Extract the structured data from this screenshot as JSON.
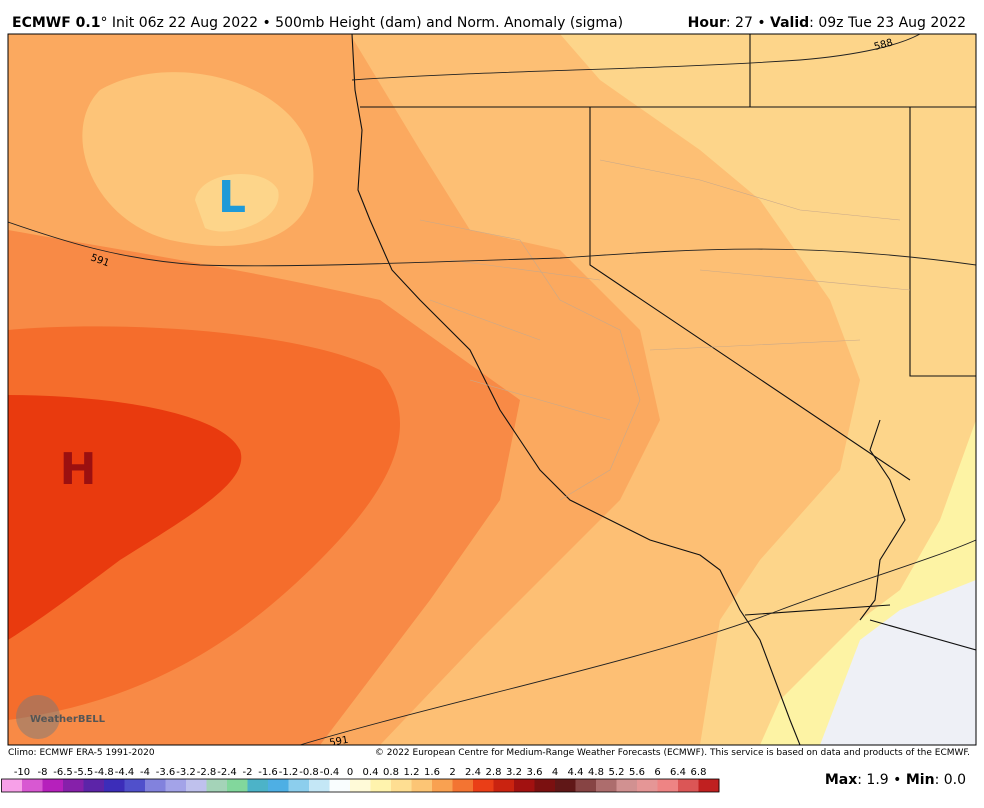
{
  "header": {
    "left": {
      "bold": "ECMWF 0.1",
      "text": "° Init 06z 22 Aug 2022 • 500mb Height (dam) and Norm. Anomaly (sigma)"
    },
    "right": {
      "hour_label": "Hour",
      "hour_text": ": 27 • ",
      "valid_label": "Valid",
      "valid_text": ": 09z Tue 23 Aug 2022"
    }
  },
  "map": {
    "low_label": "L",
    "high_label": "H",
    "contour_labels": [
      "591",
      "588",
      "591"
    ],
    "logo": "WeatherBELL"
  },
  "footer": {
    "climo": "Climo: ECMWF ERA-5 1991-2020",
    "copyright": "© 2022 European Centre for Medium-Range Weather Forecasts (ECMWF). This service is based on data and products of the ECMWF.",
    "colorbar_labels": [
      "-10",
      "-8",
      "-6.5",
      "-5.5",
      "-4.8",
      "-4.4",
      "-4",
      "-3.6",
      "-3.2",
      "-2.8",
      "-2.4",
      "-2",
      "-1.6",
      "-1.2",
      "-0.8",
      "-0.4",
      "0",
      "0.4",
      "0.8",
      "1.2",
      "1.6",
      "2",
      "2.4",
      "2.8",
      "3.2",
      "3.6",
      "4",
      "4.4",
      "4.8",
      "5.2",
      "5.6",
      "6",
      "6.4",
      "6.8"
    ],
    "max_label": "Max",
    "max_text": ": 1.9 • ",
    "min_label": "Min",
    "min_text": ": 0.0"
  }
}
